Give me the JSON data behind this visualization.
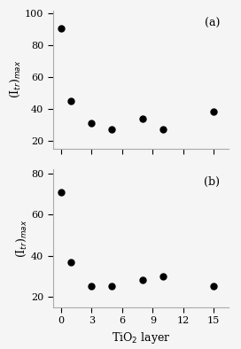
{
  "plot_a": {
    "x": [
      0,
      1,
      3,
      5,
      8,
      10,
      15
    ],
    "y": [
      91,
      45,
      31,
      27,
      34,
      27,
      38
    ],
    "ylim": [
      15,
      102
    ],
    "yticks": [
      20,
      40,
      60,
      80,
      100
    ],
    "label": "(a)"
  },
  "plot_b": {
    "x": [
      0,
      1,
      3,
      5,
      8,
      10,
      15
    ],
    "y": [
      71,
      37,
      25,
      25,
      28,
      30,
      25
    ],
    "ylim": [
      15,
      82
    ],
    "yticks": [
      20,
      40,
      60,
      80
    ],
    "label": "(b)"
  },
  "xticks": [
    0,
    3,
    6,
    9,
    12,
    15
  ],
  "xlabel": "TiO$_2$ layer",
  "ylabel": "(I$_{tr}$)$_{max}$",
  "marker": "o",
  "markersize": 5,
  "markercolor": "black",
  "bg_color": "#f5f5f5",
  "spine_color": "#aaaaaa",
  "tick_labelsize": 8,
  "label_fontsize": 9,
  "annot_fontsize": 9
}
